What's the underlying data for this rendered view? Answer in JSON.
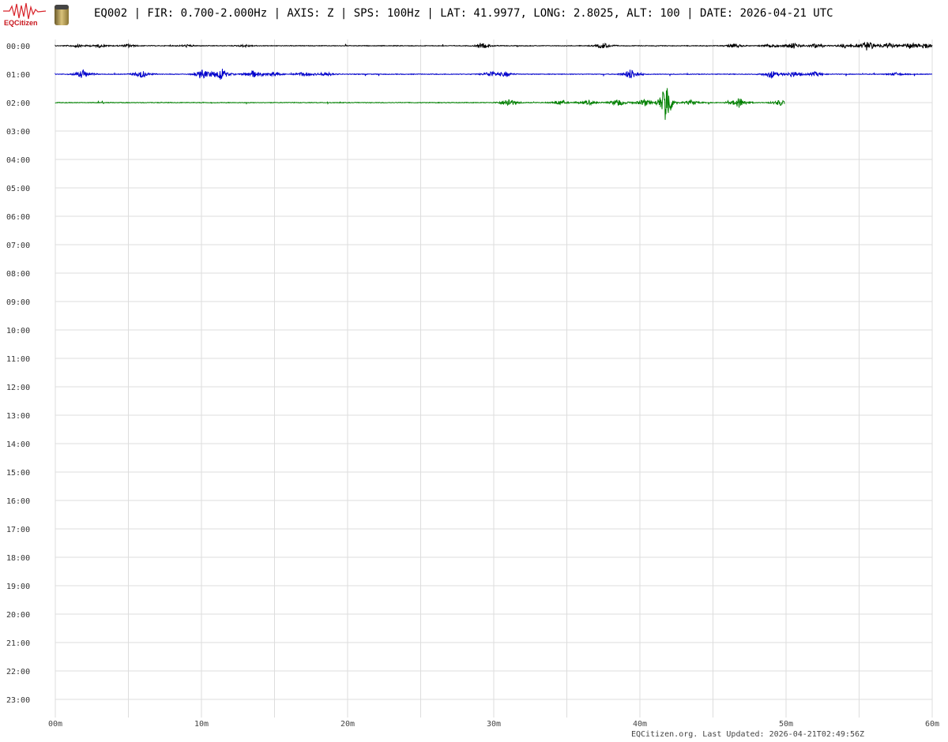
{
  "header": {
    "logo_text": "EQCitizen",
    "title": "EQ002 | FIR: 0.700-2.000Hz | AXIS: Z | SPS: 100Hz | LAT: 41.9977, LONG: 2.8025, ALT: 100 | DATE: 2026-04-21 UTC"
  },
  "footer": {
    "text": "EQCitizen.org. Last Updated: 2026-04-21T02:49:56Z"
  },
  "chart_data": {
    "type": "line",
    "subtype": "helicorder",
    "xlabel": "",
    "ylabel": "",
    "xlim": [
      0,
      60
    ],
    "x_ticks": [
      "00m",
      "10m",
      "20m",
      "30m",
      "40m",
      "50m",
      "60m"
    ],
    "y_ticks": [
      "00:00",
      "01:00",
      "02:00",
      "03:00",
      "04:00",
      "05:00",
      "06:00",
      "07:00",
      "08:00",
      "09:00",
      "10:00",
      "11:00",
      "12:00",
      "13:00",
      "14:00",
      "15:00",
      "16:00",
      "17:00",
      "18:00",
      "19:00",
      "20:00",
      "21:00",
      "22:00",
      "23:00"
    ],
    "grid": true,
    "traces": [
      {
        "hour": "00:00",
        "color": "#000000",
        "end_minute": 60,
        "events": [
          [
            1.5,
            2
          ],
          [
            3,
            2
          ],
          [
            5,
            2
          ],
          [
            9,
            1.5
          ],
          [
            13,
            1.5
          ],
          [
            29.3,
            3
          ],
          [
            37.5,
            4
          ],
          [
            46.5,
            3
          ],
          [
            49,
            3
          ],
          [
            50.5,
            4
          ],
          [
            52,
            3
          ],
          [
            54,
            3
          ],
          [
            55.6,
            7
          ],
          [
            57,
            4
          ],
          [
            58.5,
            4
          ],
          [
            59.5,
            4
          ]
        ]
      },
      {
        "hour": "01:00",
        "color": "#0000cc",
        "end_minute": 60,
        "events": [
          [
            1.9,
            6
          ],
          [
            5.9,
            5
          ],
          [
            10.1,
            6
          ],
          [
            11.3,
            8
          ],
          [
            13.5,
            5
          ],
          [
            15,
            3
          ],
          [
            17,
            3
          ],
          [
            18.5,
            3
          ],
          [
            29.8,
            4
          ],
          [
            30.8,
            3
          ],
          [
            39.4,
            7
          ],
          [
            49,
            5
          ],
          [
            50.5,
            4
          ],
          [
            52,
            3
          ],
          [
            57.5,
            2
          ]
        ]
      },
      {
        "hour": "02:00",
        "color": "#008000",
        "end_minute": 49.9,
        "events": [
          [
            31,
            6
          ],
          [
            34.5,
            3
          ],
          [
            36.5,
            3
          ],
          [
            38.5,
            5
          ],
          [
            40.3,
            5
          ],
          [
            41.8,
            36
          ],
          [
            43.5,
            3
          ],
          [
            46.8,
            7
          ],
          [
            49.6,
            4
          ]
        ]
      }
    ]
  }
}
